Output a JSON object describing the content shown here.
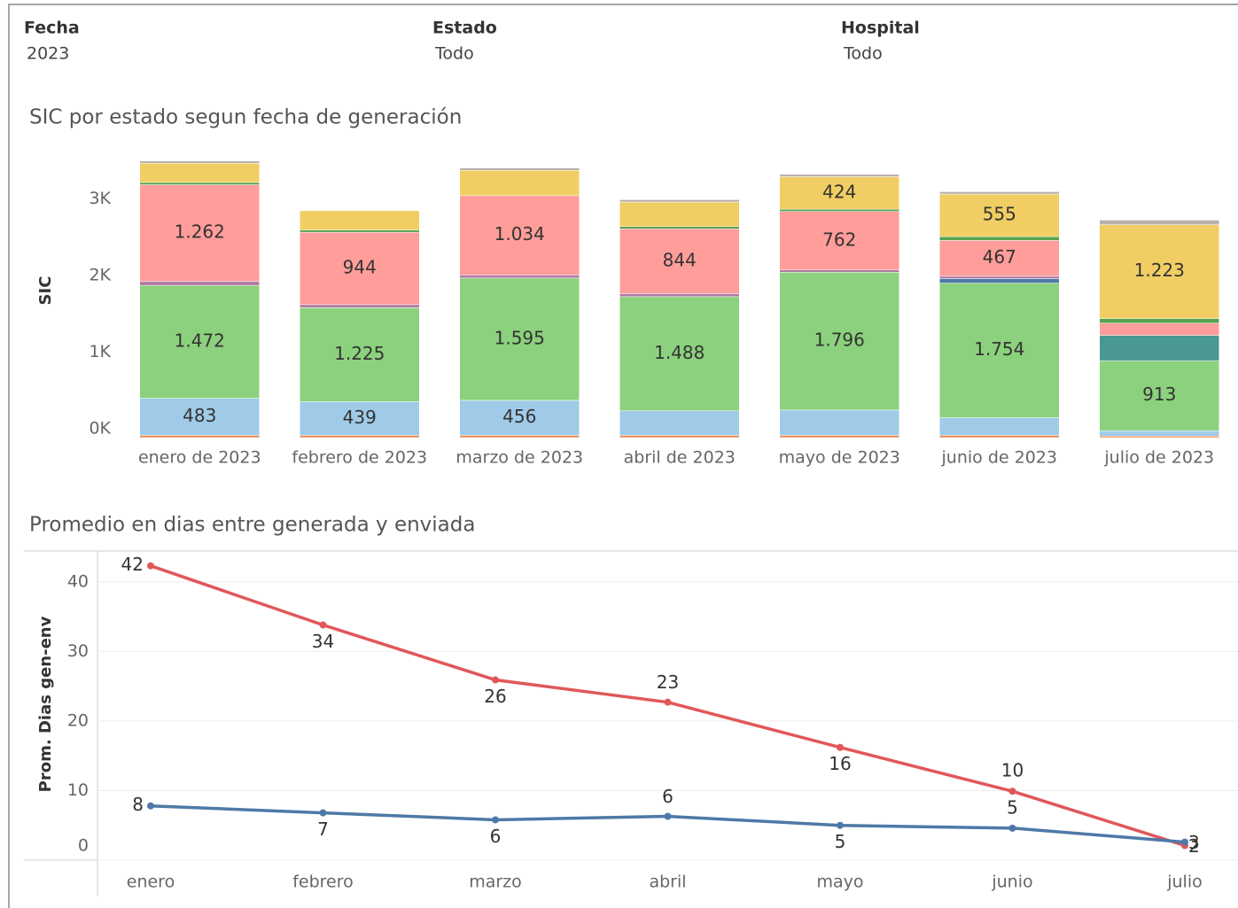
{
  "filters": [
    {
      "label": "Fecha",
      "value": "2023"
    },
    {
      "label": "Estado",
      "value": "Todo"
    },
    {
      "label": "Hospital",
      "value": "Todo"
    }
  ],
  "chart_data": [
    {
      "type": "stacked-bar",
      "title": "SIC por estado segun fecha de generación",
      "y_label": "SIC",
      "categories": [
        "enero de 2023",
        "febrero de 2023",
        "marzo de 2023",
        "abril de 2023",
        "mayo de 2023",
        "junio de 2023",
        "julio de 2023"
      ],
      "ylim": [
        0,
        3800
      ],
      "yticks": [
        {
          "value": 0,
          "label": "0K"
        },
        {
          "value": 1000,
          "label": "1K"
        },
        {
          "value": 2000,
          "label": "2K"
        },
        {
          "value": 3000,
          "label": "3K"
        }
      ],
      "grid": false,
      "series": [
        {
          "color": "#e8894a",
          "values": [
            30,
            30,
            30,
            30,
            30,
            30,
            20
          ]
        },
        {
          "color": "#a0cbe8",
          "values": [
            483,
            439,
            456,
            320,
            330,
            230,
            70
          ],
          "value_labels": [
            "483",
            "439",
            "456",
            null,
            null,
            null,
            null
          ]
        },
        {
          "color": "#8cd17d",
          "values": [
            1472,
            1225,
            1595,
            1488,
            1796,
            1754,
            913
          ],
          "value_labels": [
            "1.472",
            "1.225",
            "1.595",
            "1.488",
            "1.796",
            "1.754",
            "913"
          ]
        },
        {
          "color": "#4e79a7",
          "values": [
            0,
            0,
            0,
            0,
            0,
            60,
            0
          ]
        },
        {
          "color": "#499894",
          "values": [
            0,
            0,
            0,
            0,
            0,
            0,
            330
          ]
        },
        {
          "color": "#b07aa1",
          "values": [
            50,
            40,
            40,
            40,
            30,
            30,
            0
          ]
        },
        {
          "color": "#ff9d9a",
          "values": [
            1262,
            944,
            1034,
            844,
            762,
            467,
            160
          ],
          "value_labels": [
            "1.262",
            "944",
            "1.034",
            "844",
            "762",
            "467",
            null
          ]
        },
        {
          "color": "#59a14f",
          "values": [
            30,
            30,
            0,
            30,
            30,
            50,
            60
          ]
        },
        {
          "color": "#f1ce63",
          "values": [
            250,
            250,
            330,
            320,
            424,
            555,
            1223
          ],
          "value_labels": [
            null,
            null,
            null,
            null,
            "424",
            "555",
            "1.223"
          ]
        },
        {
          "color": "#bab0ac",
          "values": [
            30,
            0,
            30,
            30,
            30,
            30,
            60
          ]
        }
      ]
    },
    {
      "type": "line",
      "title": "Promedio en dias entre generada y enviada",
      "y_label": "Prom. Dias gen-env",
      "categories": [
        "enero",
        "febrero",
        "marzo",
        "abril",
        "mayo",
        "junio",
        "julio"
      ],
      "ylim": [
        0,
        44.3
      ],
      "yticks": [
        0,
        10,
        20,
        30,
        40
      ],
      "grid": true,
      "series": [
        {
          "color": "#e15759",
          "values": [
            42.3,
            33.8,
            25.9,
            22.7,
            16.2,
            9.9,
            2.1
          ],
          "value_labels": [
            "42",
            "34",
            "26",
            "23",
            "16",
            "10",
            "2"
          ]
        },
        {
          "color": "#4e79a7",
          "values": [
            7.8,
            6.8,
            5.8,
            6.3,
            5.0,
            4.6,
            2.6
          ],
          "value_labels": [
            "8",
            "7",
            "6",
            "6",
            "5",
            "5",
            "3"
          ]
        }
      ]
    }
  ]
}
